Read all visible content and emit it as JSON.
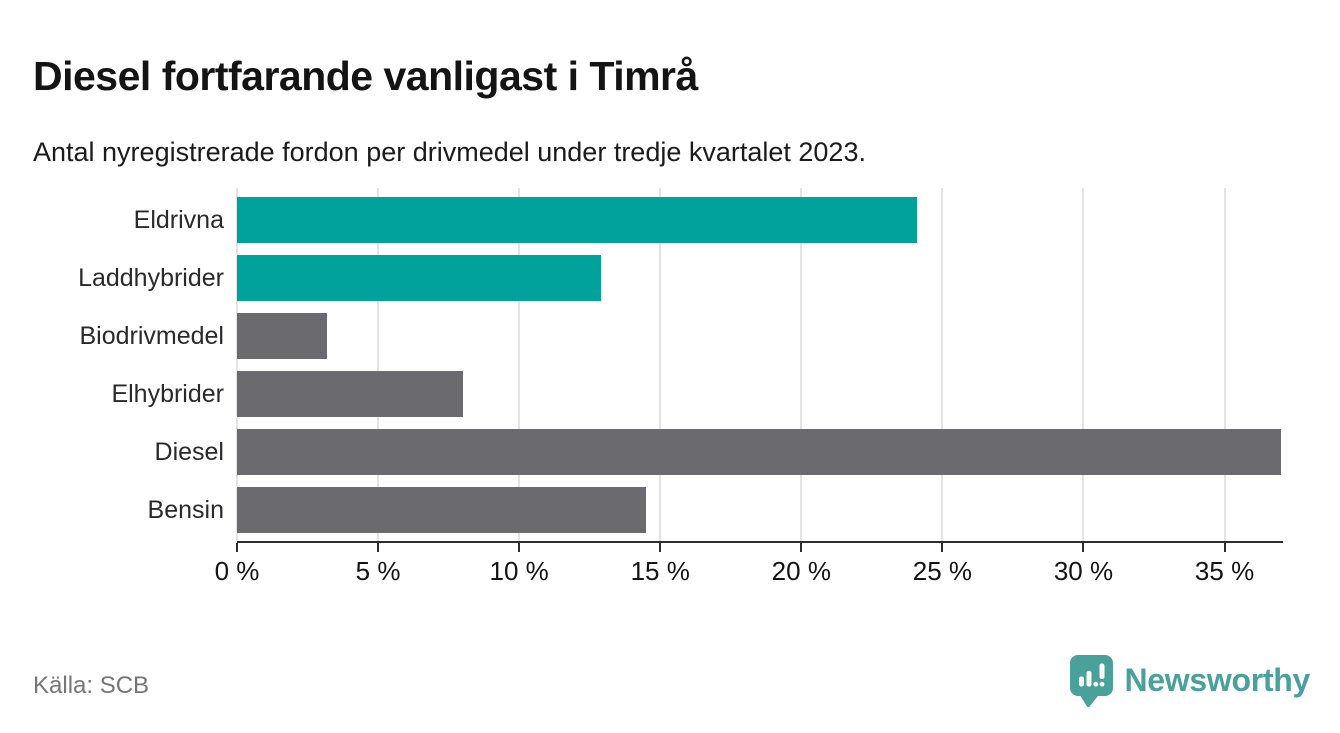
{
  "header": {
    "title": "Diesel fortfarande vanligast i Timrå",
    "subtitle": "Antal nyregistrerade fordon per drivmedel under tredje kvartalet 2023."
  },
  "chart_data": {
    "type": "bar",
    "orientation": "horizontal",
    "title": "Diesel fortfarande vanligast i Timrå",
    "subtitle": "Antal nyregistrerade fordon per drivmedel under tredje kvartalet 2023.",
    "categories": [
      "Eldrivna",
      "Laddhybrider",
      "Biodrivmedel",
      "Elhybrider",
      "Diesel",
      "Bensin"
    ],
    "values": [
      24.1,
      12.9,
      3.2,
      8.0,
      37.0,
      14.5
    ],
    "unit": "%",
    "bar_colors": [
      "#00a29b",
      "#00a29b",
      "#6a6a6f",
      "#6a6a6f",
      "#6a6a6f",
      "#6a6a6f"
    ],
    "xlim": [
      0,
      37
    ],
    "x_ticks": [
      0,
      5,
      10,
      15,
      20,
      25,
      30,
      35
    ],
    "x_tick_labels": [
      "0 %",
      "5 %",
      "10 %",
      "15 %",
      "20 %",
      "25 %",
      "30 %",
      "35 %"
    ],
    "grid": true,
    "legend": null,
    "xlabel": "",
    "ylabel": ""
  },
  "footer": {
    "source": "Källa: SCB",
    "brand": "Newsworthy"
  },
  "colors": {
    "accent_teal": "#00a29b",
    "bar_gray": "#6a6a6f",
    "gridline": "#e3e3e3",
    "axis": "#2e2e2e",
    "source_text": "#767676",
    "brand_teal": "#4aa09a"
  }
}
